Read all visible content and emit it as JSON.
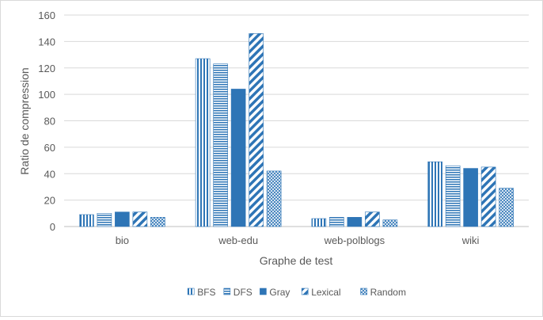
{
  "chart_data": {
    "type": "bar",
    "title": "",
    "xlabel": "Graphe de test",
    "ylabel": "Ratio de compression",
    "ylim": [
      0,
      160
    ],
    "yticks": [
      0,
      20,
      40,
      60,
      80,
      100,
      120,
      140,
      160
    ],
    "grid": true,
    "legend_position": "bottom",
    "categories": [
      "bio",
      "web-edu",
      "web-polblogs",
      "wiki"
    ],
    "series": [
      {
        "name": "BFS",
        "pattern": "vertical-lines",
        "values": [
          9,
          127,
          6,
          49
        ]
      },
      {
        "name": "DFS",
        "pattern": "horizontal-lines",
        "values": [
          10,
          123,
          7,
          46
        ]
      },
      {
        "name": "Gray",
        "pattern": "solid",
        "values": [
          11,
          104,
          7,
          44
        ]
      },
      {
        "name": "Lexical",
        "pattern": "diagonal-lines",
        "values": [
          11,
          146,
          11,
          45
        ]
      },
      {
        "name": "Random",
        "pattern": "cross-hatch",
        "values": [
          7,
          42,
          5,
          29
        ]
      }
    ],
    "colors": {
      "series": "#2E75B6",
      "grid": "#d9d9d9",
      "text": "#595959"
    }
  }
}
